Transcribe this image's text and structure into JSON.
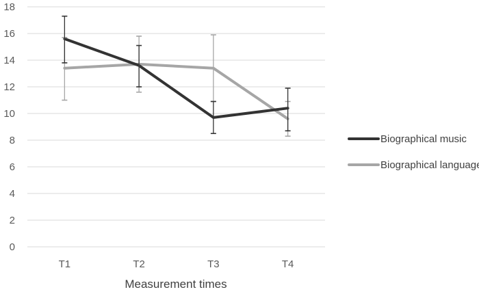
{
  "chart_data": {
    "type": "line",
    "title": "",
    "xlabel": "Measurement times",
    "ylabel": "",
    "categories": [
      "T1",
      "T2",
      "T3",
      "T4"
    ],
    "ylim": [
      0,
      18
    ],
    "yticks": [
      0,
      2,
      4,
      6,
      8,
      10,
      12,
      14,
      16,
      18
    ],
    "grid": true,
    "legend_position": "right",
    "series": [
      {
        "name": "Biographical music",
        "color": "#333333",
        "values": [
          15.6,
          13.6,
          9.7,
          10.4
        ],
        "error_low": [
          13.8,
          12.0,
          8.5,
          8.7
        ],
        "error_high": [
          17.3,
          15.1,
          10.9,
          11.9
        ]
      },
      {
        "name": "Biographical language",
        "color": "#a6a6a6",
        "values": [
          13.4,
          13.7,
          13.4,
          9.6
        ],
        "error_low": [
          11.0,
          11.6,
          10.9,
          8.3
        ],
        "error_high": [
          15.7,
          15.8,
          15.9,
          10.9
        ]
      }
    ]
  }
}
